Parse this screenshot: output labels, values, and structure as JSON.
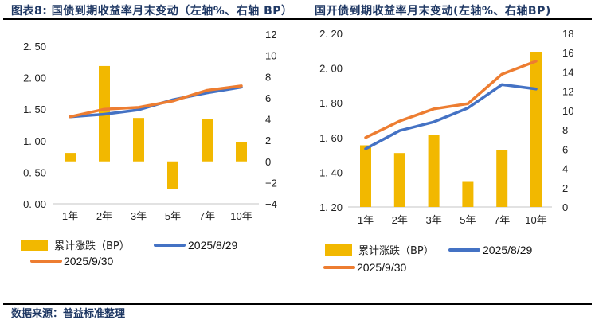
{
  "header": {
    "left_title": "图表8:   国债到期收益率月末变动（左轴%、右轴 BP）",
    "right_title": "国开债到期收益率月末变动(左轴%、右轴BP)"
  },
  "footer": {
    "source": "数据来源：普益标准整理"
  },
  "colors": {
    "bar": "#f2b800",
    "series_0829": "#4472c4",
    "series_0930": "#ed7d31",
    "axis": "#d9d9d9",
    "title": "#1f3864"
  },
  "chart_data": [
    {
      "type": "bar+line",
      "title": "国债到期收益率月末变动（左轴%、右轴 BP）",
      "categories": [
        "1年",
        "2年",
        "3年",
        "5年",
        "7年",
        "10年"
      ],
      "left_axis": {
        "label": "%",
        "ylim": [
          0,
          2.5
        ],
        "ticks": [
          "0.00",
          "0.50",
          "1.00",
          "1.50",
          "2.00",
          "2.50"
        ],
        "tick_values": [
          0,
          0.5,
          1.0,
          1.5,
          2.0,
          2.5
        ]
      },
      "right_axis": {
        "label": "BP",
        "ylim": [
          -4,
          12
        ],
        "ticks": [
          "-4",
          "-2",
          "0",
          "2",
          "4",
          "6",
          "8",
          "10",
          "12"
        ],
        "tick_values": [
          -4,
          -2,
          0,
          2,
          4,
          6,
          8,
          10,
          12
        ]
      },
      "series": [
        {
          "name": "累计涨跌（BP）",
          "type": "bar",
          "axis": "right",
          "values": [
            0.8,
            9.0,
            4.1,
            -2.6,
            4.0,
            1.8
          ]
        },
        {
          "name": "2025/8/29",
          "type": "line",
          "axis": "left",
          "values": [
            1.38,
            1.42,
            1.49,
            1.65,
            1.76,
            1.85
          ]
        },
        {
          "name": "2025/9/30",
          "type": "line",
          "axis": "left",
          "values": [
            1.38,
            1.5,
            1.53,
            1.63,
            1.8,
            1.87
          ]
        }
      ],
      "legend": [
        "累计涨跌（BP）",
        "2025/8/29",
        "2025/9/30"
      ],
      "legend_position": "bottom",
      "grid": false
    },
    {
      "type": "bar+line",
      "title": "国开债到期收益率月末变动(左轴%、右轴BP)",
      "categories": [
        "1年",
        "2年",
        "3年",
        "5年",
        "7年",
        "10年"
      ],
      "left_axis": {
        "label": "%",
        "ylim": [
          1.2,
          2.2
        ],
        "ticks": [
          "1.20",
          "1.40",
          "1.60",
          "1.80",
          "2.00",
          "2.20"
        ],
        "tick_values": [
          1.2,
          1.4,
          1.6,
          1.8,
          2.0,
          2.2
        ]
      },
      "right_axis": {
        "label": "BP",
        "ylim": [
          0,
          18
        ],
        "ticks": [
          "0",
          "2",
          "4",
          "6",
          "8",
          "10",
          "12",
          "14",
          "16",
          "18"
        ],
        "tick_values": [
          0,
          2,
          4,
          6,
          8,
          10,
          12,
          14,
          16,
          18
        ]
      },
      "series": [
        {
          "name": "累计涨跌（BP）",
          "type": "bar",
          "axis": "right",
          "values": [
            6.4,
            5.6,
            7.5,
            2.6,
            5.9,
            16.1
          ]
        },
        {
          "name": "2025/8/29",
          "type": "line",
          "axis": "left",
          "values": [
            1.535,
            1.64,
            1.69,
            1.77,
            1.905,
            1.88
          ]
        },
        {
          "name": "2025/9/30",
          "type": "line",
          "axis": "left",
          "values": [
            1.6,
            1.695,
            1.765,
            1.795,
            1.965,
            2.04
          ]
        }
      ],
      "legend": [
        "累计涨跌（BP）",
        "2025/8/29",
        "2025/9/30"
      ],
      "legend_position": "bottom",
      "grid": false
    }
  ]
}
